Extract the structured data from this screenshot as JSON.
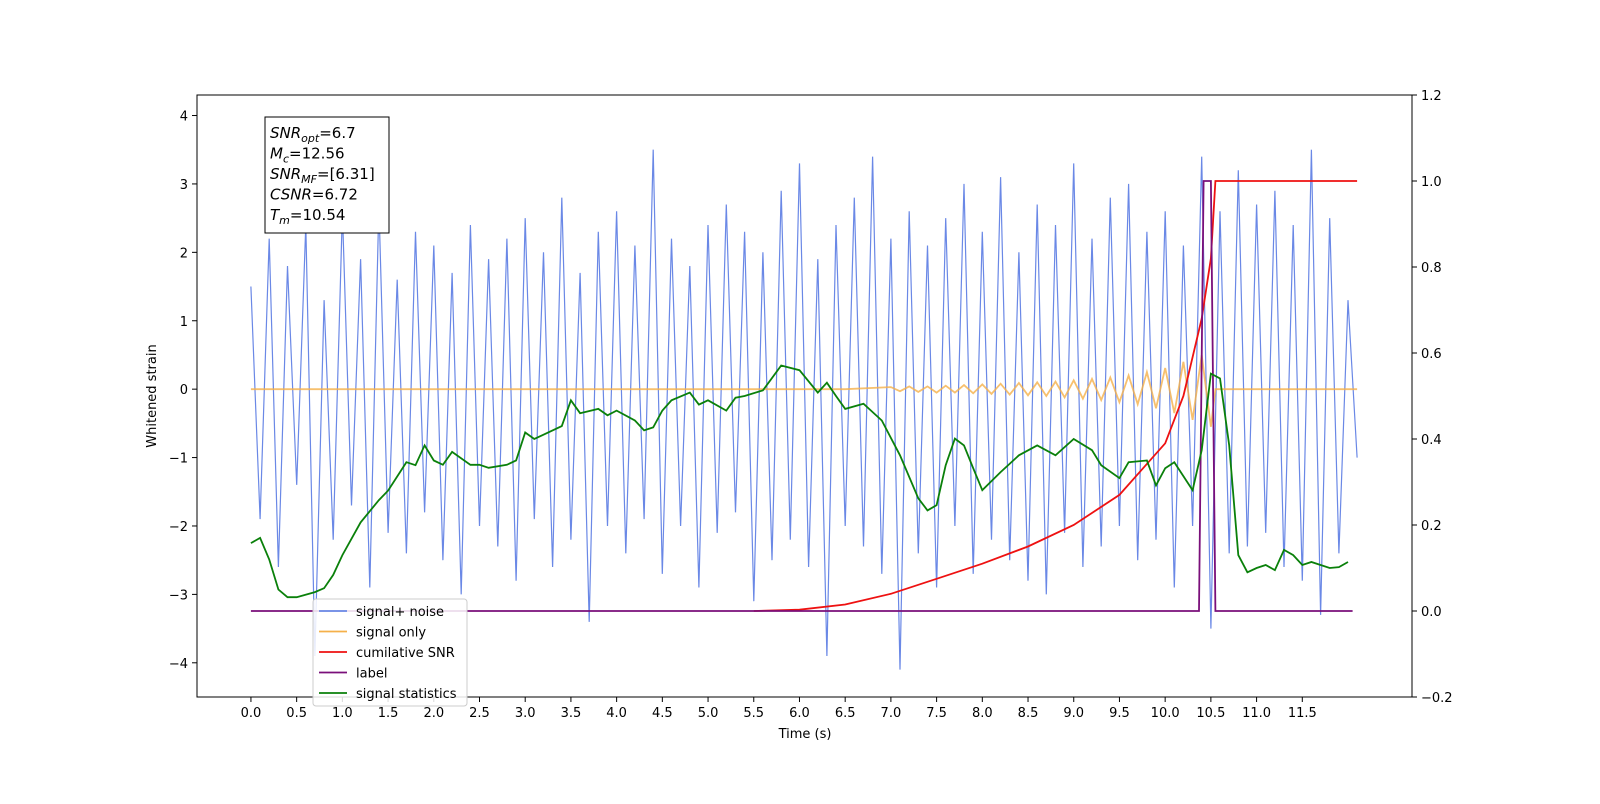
{
  "chart_data": {
    "type": "line",
    "ylabel": "Whitened strain",
    "xlabel": "Time (s)",
    "xlim": [
      -0.59,
      12.7
    ],
    "ylim": [
      -4.5,
      4.3
    ],
    "y2lim": [
      -0.2,
      1.2
    ],
    "xticks": [
      {
        "value": 0,
        "label": "0.0"
      },
      0.5,
      {
        "value": 1,
        "label": "1.0"
      },
      1.5,
      {
        "value": 2,
        "label": "2.0"
      },
      2.5,
      {
        "value": 3,
        "label": "3.0"
      },
      3.5,
      {
        "value": 4,
        "label": "4.0"
      },
      4.5,
      {
        "value": 5,
        "label": "5.0"
      },
      5.5,
      {
        "value": 6,
        "label": "6.0"
      },
      6.5,
      {
        "value": 7,
        "label": "7.0"
      },
      7.5,
      {
        "value": 8,
        "label": "8.0"
      },
      8.5,
      {
        "value": 9,
        "label": "9.0"
      },
      9.5,
      {
        "value": 10,
        "label": "10.0"
      },
      10.5,
      {
        "value": 11,
        "label": "11.0"
      },
      11.5
    ],
    "yticks": [
      {
        "value": -4,
        "label": "−4"
      },
      {
        "value": -3,
        "label": "−3"
      },
      {
        "value": -2,
        "label": "−2"
      },
      {
        "value": -1,
        "label": "−1"
      },
      0,
      1,
      2,
      3,
      4
    ],
    "y2ticks": [
      {
        "value": -0.2,
        "label": "−0.2"
      },
      {
        "value": 0,
        "label": "0.0"
      },
      0.2,
      0.4,
      0.6,
      0.8,
      {
        "value": 1,
        "label": "1.0"
      },
      1.2
    ],
    "annotation": [
      {
        "base": "SNR",
        "sub": "opt",
        "text": "=6.7"
      },
      {
        "base": "M",
        "sub": "c",
        "text": "=12.56"
      },
      {
        "base": "SNR",
        "sub": "MF",
        "text": "=[6.31]"
      },
      {
        "base": "CSNR",
        "text": "=6.72"
      },
      {
        "base": "T",
        "sub": "m",
        "text": "=10.54"
      }
    ],
    "series": [
      {
        "name": "signal+ noise",
        "color": "#6a88e6",
        "x": [
          0,
          0.1,
          0.2,
          0.3,
          0.4,
          0.5,
          0.6,
          0.7,
          0.8,
          0.9,
          1,
          1.1,
          1.2,
          1.3,
          1.4,
          1.5,
          1.6,
          1.7,
          1.8,
          1.9,
          2,
          2.1,
          2.2,
          2.3,
          2.4,
          2.5,
          2.6,
          2.7,
          2.8,
          2.9,
          3,
          3.1,
          3.2,
          3.3,
          3.4,
          3.5,
          3.6,
          3.7,
          3.8,
          3.9,
          4,
          4.1,
          4.2,
          4.3,
          4.4,
          4.5,
          4.6,
          4.7,
          4.8,
          4.9,
          5,
          5.1,
          5.2,
          5.3,
          5.4,
          5.5,
          5.6,
          5.7,
          5.8,
          5.9,
          6,
          6.1,
          6.2,
          6.3,
          6.4,
          6.5,
          6.6,
          6.7,
          6.8,
          6.9,
          7,
          7.1,
          7.2,
          7.3,
          7.4,
          7.5,
          7.6,
          7.7,
          7.8,
          7.9,
          8,
          8.1,
          8.2,
          8.3,
          8.4,
          8.5,
          8.6,
          8.7,
          8.8,
          8.9,
          9,
          9.1,
          9.2,
          9.3,
          9.4,
          9.5,
          9.6,
          9.7,
          9.8,
          9.9,
          10,
          10.1,
          10.2,
          10.3,
          10.4,
          10.5,
          10.6,
          10.7,
          10.8,
          10.9,
          11,
          11.1,
          11.2,
          11.3,
          11.4,
          11.5,
          11.6,
          11.7,
          11.8,
          11.9,
          12,
          12.1
        ],
        "values": [
          1.5,
          -1.9,
          2.2,
          -2.6,
          1.8,
          -1.4,
          2.4,
          -3.9,
          1.3,
          -2.2,
          2.6,
          -1.7,
          1.9,
          -2.9,
          2.7,
          -2.1,
          1.6,
          -2.4,
          2.3,
          -1.8,
          2.1,
          -2.5,
          1.7,
          -3.0,
          2.4,
          -2.0,
          1.9,
          -2.3,
          2.2,
          -2.8,
          2.5,
          -1.9,
          2.0,
          -2.6,
          2.8,
          -2.2,
          1.7,
          -3.4,
          2.3,
          -2.0,
          2.6,
          -2.4,
          2.1,
          -1.9,
          3.5,
          -2.7,
          2.2,
          -2.0,
          1.8,
          -2.9,
          2.4,
          -2.1,
          2.7,
          -1.8,
          2.3,
          -3.1,
          2.0,
          -2.5,
          2.9,
          -2.2,
          3.3,
          -2.6,
          1.9,
          -3.9,
          2.4,
          -2.0,
          2.8,
          -2.3,
          3.4,
          -2.7,
          2.2,
          -4.1,
          2.6,
          -2.4,
          2.1,
          -2.9,
          2.5,
          -2.0,
          3.0,
          -2.7,
          2.3,
          -2.2,
          3.1,
          -2.5,
          2.0,
          -2.8,
          2.7,
          -3.0,
          2.4,
          -2.1,
          3.3,
          -2.6,
          2.2,
          -2.3,
          2.8,
          -2.0,
          3.0,
          -2.5,
          2.3,
          -2.2,
          2.6,
          -2.9,
          2.1,
          -2.0,
          3.4,
          -3.5,
          2.6,
          -2.4,
          3.2,
          -2.3,
          2.7,
          -2.1,
          2.9,
          -2.6,
          2.4,
          -2.8,
          3.5,
          -3.3,
          2.5,
          -2.4,
          1.3,
          -1.0
        ]
      },
      {
        "name": "signal only",
        "color": "#f5b04a",
        "x": [
          0,
          6.5,
          7,
          7.1,
          7.2,
          7.3,
          7.4,
          7.5,
          7.6,
          7.7,
          7.8,
          7.9,
          8,
          8.1,
          8.2,
          8.3,
          8.4,
          8.5,
          8.6,
          8.7,
          8.8,
          8.9,
          9,
          9.1,
          9.2,
          9.3,
          9.4,
          9.5,
          9.6,
          9.7,
          9.8,
          9.9,
          10,
          10.1,
          10.2,
          10.3,
          10.4,
          10.5,
          10.55,
          12.1
        ],
        "values": [
          0,
          0,
          0.03,
          -0.03,
          0.04,
          -0.04,
          0.04,
          -0.05,
          0.05,
          -0.05,
          0.06,
          -0.06,
          0.07,
          -0.07,
          0.08,
          -0.08,
          0.09,
          -0.09,
          0.1,
          -0.1,
          0.11,
          -0.12,
          0.13,
          -0.14,
          0.15,
          -0.16,
          0.17,
          -0.19,
          0.2,
          -0.22,
          0.25,
          -0.28,
          0.31,
          -0.35,
          0.4,
          -0.45,
          0.5,
          -0.55,
          0,
          0
        ]
      },
      {
        "name": "cumilative SNR",
        "color": "#ee1111",
        "axis": "y2",
        "x": [
          5.5,
          6,
          6.5,
          7,
          7.5,
          8,
          8.5,
          9,
          9.5,
          10,
          10.2,
          10.4,
          10.5,
          10.55,
          12.1
        ],
        "values": [
          0,
          0.003,
          0.015,
          0.04,
          0.075,
          0.11,
          0.15,
          0.2,
          0.27,
          0.39,
          0.5,
          0.68,
          0.82,
          1,
          1
        ]
      },
      {
        "name": "label",
        "color": "#7a0f7a",
        "axis": "y2",
        "x": [
          0,
          10.37,
          10.42,
          10.5,
          10.55,
          12.05
        ],
        "values": [
          0,
          0,
          1,
          1,
          0,
          0
        ]
      },
      {
        "name": "signal statistics",
        "color": "#0a800a",
        "axis": "y2",
        "x": [
          0,
          0.1,
          0.2,
          0.3,
          0.4,
          0.5,
          0.7,
          0.8,
          0.9,
          1,
          1.2,
          1.4,
          1.5,
          1.7,
          1.8,
          1.9,
          2,
          2.1,
          2.2,
          2.4,
          2.5,
          2.6,
          2.8,
          2.9,
          3,
          3.1,
          3.2,
          3.4,
          3.5,
          3.6,
          3.8,
          3.9,
          4,
          4.2,
          4.3,
          4.4,
          4.5,
          4.6,
          4.8,
          4.9,
          5,
          5.2,
          5.3,
          5.4,
          5.6,
          5.8,
          6,
          6.2,
          6.3,
          6.4,
          6.5,
          6.7,
          6.9,
          7.1,
          7.3,
          7.4,
          7.5,
          7.6,
          7.7,
          7.8,
          7.9,
          8,
          8.2,
          8.4,
          8.6,
          8.8,
          9,
          9.2,
          9.3,
          9.5,
          9.6,
          9.8,
          9.9,
          10,
          10.1,
          10.3,
          10.4,
          10.5,
          10.6,
          10.7,
          10.8,
          10.9,
          11,
          11.1,
          11.2,
          11.3,
          11.4,
          11.5,
          11.6,
          11.8,
          11.9,
          12
        ],
        "values": [
          0.158,
          0.17,
          0.12,
          0.05,
          0.032,
          0.032,
          0.044,
          0.053,
          0.084,
          0.13,
          0.206,
          0.258,
          0.28,
          0.346,
          0.339,
          0.385,
          0.35,
          0.34,
          0.37,
          0.34,
          0.34,
          0.333,
          0.34,
          0.35,
          0.415,
          0.4,
          0.41,
          0.43,
          0.49,
          0.46,
          0.47,
          0.455,
          0.466,
          0.443,
          0.42,
          0.427,
          0.466,
          0.49,
          0.508,
          0.48,
          0.49,
          0.466,
          0.496,
          0.5,
          0.513,
          0.571,
          0.56,
          0.508,
          0.531,
          0.5,
          0.47,
          0.482,
          0.443,
          0.362,
          0.262,
          0.234,
          0.246,
          0.339,
          0.401,
          0.385,
          0.332,
          0.281,
          0.323,
          0.362,
          0.385,
          0.362,
          0.4,
          0.374,
          0.339,
          0.309,
          0.346,
          0.35,
          0.292,
          0.332,
          0.346,
          0.281,
          0.374,
          0.552,
          0.541,
          0.385,
          0.13,
          0.09,
          0.1,
          0.107,
          0.095,
          0.142,
          0.13,
          0.107,
          0.114,
          0.1,
          0.102,
          0.114
        ]
      }
    ]
  }
}
